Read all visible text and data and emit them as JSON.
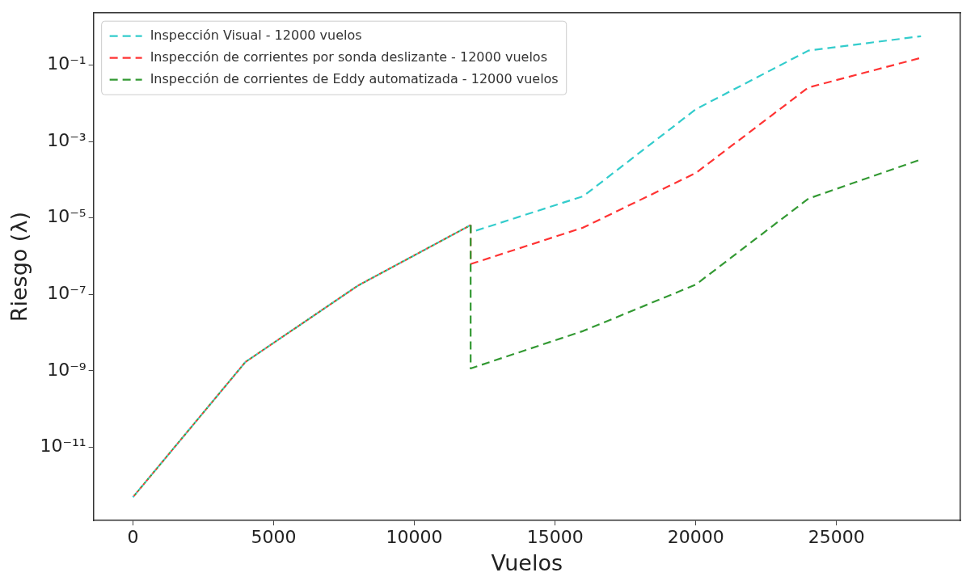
{
  "chart_data": {
    "type": "line",
    "xlabel": "Vuelos",
    "ylabel": "Riesgo (λ)",
    "log": "y",
    "grid": false,
    "legend": "top left",
    "line_style": "dashed",
    "marker": "none",
    "xlim": [
      -1400,
      29400
    ],
    "xticks": [
      0,
      5000,
      10000,
      15000,
      20000,
      25000
    ],
    "ylim": [
      1.2e-13,
      2.3
    ],
    "yticks": [
      {
        "value": 1e-11,
        "label": "10⁻¹¹"
      },
      {
        "value": 1e-09,
        "label": "10⁻⁹"
      },
      {
        "value": 1e-07,
        "label": "10⁻⁷"
      },
      {
        "value": 1e-05,
        "label": "10⁻⁵"
      },
      {
        "value": 0.001,
        "label": "10⁻³"
      },
      {
        "value": 0.1,
        "label": "10⁻¹"
      }
    ],
    "series": [
      {
        "name": "Inspección Visual - 12000 vuelos",
        "color": "#33cccc",
        "x": [
          0,
          4000,
          8000,
          12000,
          12000,
          16000,
          20000,
          24000,
          28000
        ],
        "values": [
          4.9e-13,
          1.7e-09,
          1.7e-07,
          6.5e-06,
          4.2e-06,
          3.7e-05,
          0.007,
          0.24,
          0.57
        ]
      },
      {
        "name": "Inspección de corrientes por sonda deslizante - 12000 vuelos",
        "color": "#ff3333",
        "x": [
          0,
          4000,
          8000,
          12000,
          12000,
          16000,
          20000,
          24000,
          28000
        ],
        "values": [
          4.9e-13,
          1.7e-09,
          1.7e-07,
          6.5e-06,
          6.2e-07,
          5.6e-06,
          0.00015,
          0.026,
          0.155
        ]
      },
      {
        "name": "Inspección de corrientes de Eddy automatizada - 12000 vuelos",
        "color": "#339933",
        "x": [
          0,
          4000,
          8000,
          12000,
          12000,
          16000,
          20000,
          24000,
          28000
        ],
        "values": [
          4.9e-13,
          1.7e-09,
          1.7e-07,
          6.5e-06,
          1.15e-09,
          1.1e-08,
          1.8e-07,
          3.2e-05,
          0.00034
        ]
      }
    ]
  }
}
